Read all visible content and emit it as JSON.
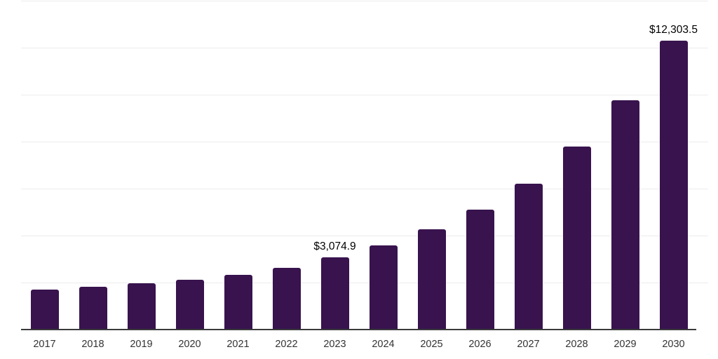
{
  "chart_data": {
    "type": "bar",
    "title": "",
    "xlabel": "",
    "ylabel": "",
    "categories": [
      "2017",
      "2018",
      "2019",
      "2020",
      "2021",
      "2022",
      "2023",
      "2024",
      "2025",
      "2026",
      "2027",
      "2028",
      "2029",
      "2030"
    ],
    "values": [
      1700,
      1820,
      1970,
      2120,
      2330,
      2630,
      3074.9,
      3570,
      4270,
      5110,
      6220,
      7780,
      9750,
      12303.5
    ],
    "data_labels": [
      "",
      "",
      "",
      "",
      "",
      "",
      "$3,074.9",
      "",
      "",
      "",
      "",
      "",
      "",
      "$12,303.5"
    ],
    "ylim": [
      0,
      14000
    ],
    "grid_step": 2000,
    "grid": "on",
    "legend": "none",
    "colors": {
      "bar": "#38134E",
      "grid": "#ececec",
      "axis": "#3a3a3a",
      "data_label": "#000000",
      "tick_label": "#333333"
    }
  }
}
